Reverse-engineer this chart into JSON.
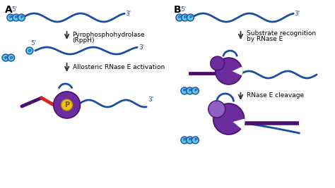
{
  "bg_color": "#ffffff",
  "rna_color": "#1a4fa0",
  "rna_lw": 2.0,
  "phosphate_color": "#5bc8e8",
  "phosphate_edge": "#1a4fa0",
  "enzyme_purple": "#6b2d9e",
  "enzyme_dark_purple": "#4a1070",
  "enzyme_light_purple": "#9060c0",
  "red_site": "#dd2222",
  "yellow_circle": "#f0c020",
  "arrow_color": "#333333",
  "label_A": "A",
  "label_B": "B",
  "label_5p": "5'",
  "label_3p": "3'",
  "text_pyro_1": "Pyrophosphohydrolase",
  "text_pyro_2": "(RppH)",
  "text_allosteric": "Allosteric RNase E activation",
  "text_substrate_1": "Substrate recognition",
  "text_substrate_2": "by RNase E",
  "text_cleavage": "RNase E cleavage",
  "fig_w": 4.74,
  "fig_h": 2.67,
  "dpi": 100
}
